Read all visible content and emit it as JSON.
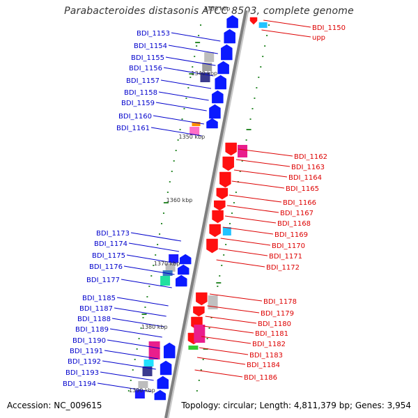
{
  "title": "Parabacteroides distasonis ATCC 8503, complete genome",
  "accession_label": "Accession: NC_009615",
  "topology_label": "Topology: circular;",
  "length_label": "Length: 4,811,379 bp;",
  "genes_label": "Genes: 3,954",
  "colors": {
    "forward_label": "#0000cc",
    "reverse_label": "#dd0000",
    "forward_gene": "#0a1aff",
    "reverse_gene": "#ff1010",
    "backbone": "#808080",
    "tick": "#2e8b2e"
  },
  "scale_labels": [
    "1330 kbp",
    "1340 kbp",
    "1350 kbp",
    "1360 kbp",
    "1370 kbp",
    "1380 kbp",
    "1390 kbp"
  ],
  "forward_genes": [
    "BDI_1153",
    "BDI_1154",
    "BDI_1155",
    "BDI_1156",
    "BDI_1157",
    "BDI_1158",
    "BDI_1159",
    "BDI_1160",
    "BDI_1161",
    "BDI_1173",
    "BDI_1174",
    "BDI_1175",
    "BDI_1176",
    "BDI_1177",
    "BDI_1185",
    "BDI_1187",
    "BDI_1188",
    "BDI_1189",
    "BDI_1190",
    "BDI_1191",
    "BDI_1192",
    "BDI_1193",
    "BDI_1194"
  ],
  "reverse_genes": [
    "BDI_1150",
    "upp",
    "BDI_1162",
    "BDI_1163",
    "BDI_1164",
    "BDI_1165",
    "BDI_1166",
    "BDI_1167",
    "BDI_1168",
    "BDI_1169",
    "BDI_1170",
    "BDI_1171",
    "BDI_1172",
    "BDI_1178",
    "BDI_1179",
    "BDI_1180",
    "BDI_1181",
    "BDI_1182",
    "BDI_1183",
    "BDI_1184",
    "BDI_1186"
  ]
}
